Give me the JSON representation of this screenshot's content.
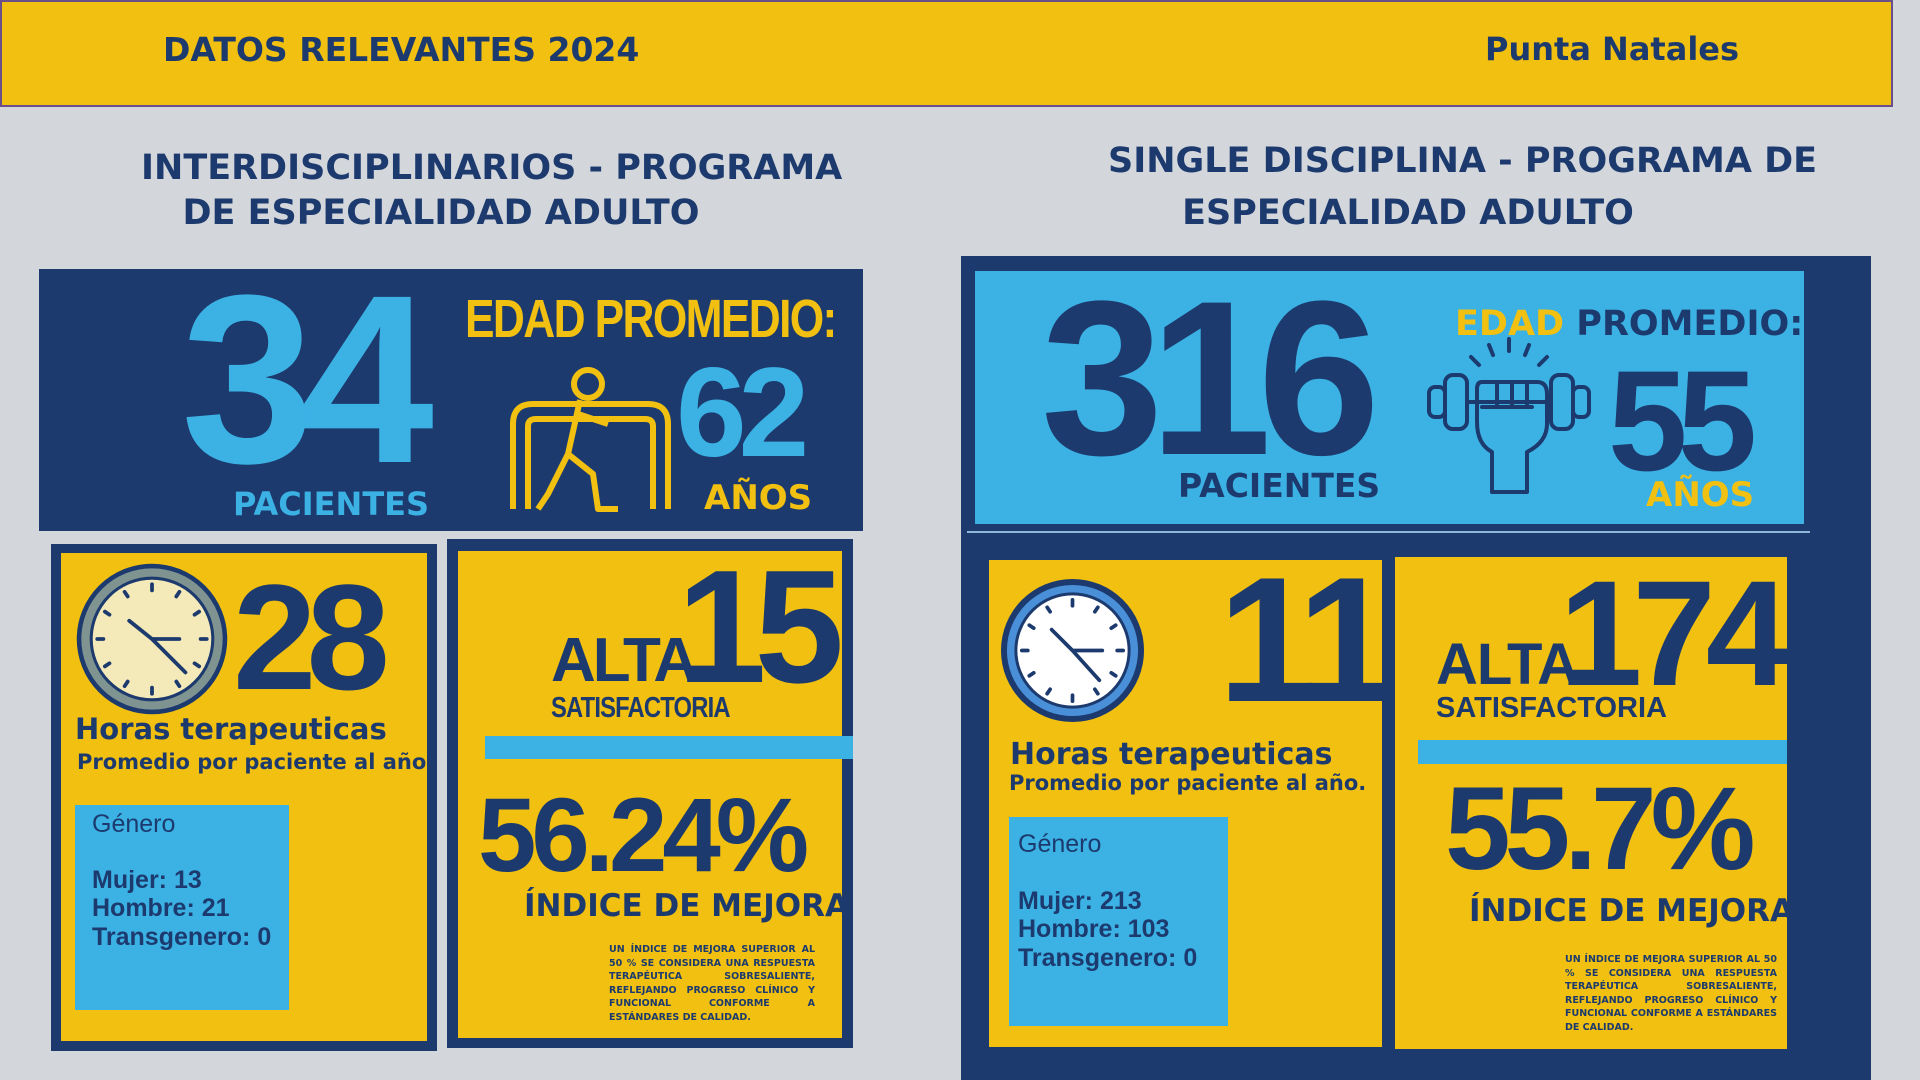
{
  "header": {
    "title": "DATOS RELEVANTES 2024",
    "location": "Punta Natales"
  },
  "panels": [
    {
      "title": [
        "INTERDISCIPLINARIOS - PROGRAMA",
        "DE ESPECIALIDAD ADULTO"
      ],
      "patients": {
        "value": "34",
        "label": "PACIENTES"
      },
      "age": {
        "label": [
          "EDAD",
          "PROMEDIO:"
        ],
        "value": "62",
        "unit": "AÑOS"
      },
      "hours": {
        "value": "28",
        "label": "Horas terapeuticas",
        "sublabel": "Promedio por paciente al año."
      },
      "gender": {
        "title": "Género",
        "items": [
          "Mujer: 13",
          "Hombre: 21",
          "Transgenero: 0"
        ]
      },
      "discharge": {
        "label": "ALTA",
        "value": "15",
        "sublabel": "SATISFACTORIA"
      },
      "improvement": {
        "value": "56.24%",
        "label": "ÍNDICE DE MEJORA",
        "note": "UN ÍNDICE DE MEJORA SUPERIOR AL 50 % SE CONSIDERA UNA RESPUESTA TERAPÉUTICA SOBRESALIENTE, REFLEJANDO PROGRESO CLÍNICO Y FUNCIONAL CONFORME A ESTÁNDARES DE CALIDAD."
      }
    },
    {
      "title": [
        "SINGLE DISCIPLINA - PROGRAMA DE",
        "ESPECIALIDAD ADULTO"
      ],
      "patients": {
        "value": "316",
        "label": "PACIENTES"
      },
      "age": {
        "label": [
          "EDAD",
          "PROMEDIO:"
        ],
        "value": "55",
        "unit": "AÑOS"
      },
      "hours": {
        "value": "11",
        "label": "Horas terapeuticas",
        "sublabel": "Promedio por paciente al año."
      },
      "gender": {
        "title": "Género",
        "items": [
          "Mujer: 213",
          "Hombre: 103",
          "Transgenero: 0"
        ]
      },
      "discharge": {
        "label": "ALTA",
        "value": "174",
        "sublabel": "SATISFACTORIA"
      },
      "improvement": {
        "value": "55.7%",
        "label": "ÍNDICE DE MEJORA",
        "note": "UN ÍNDICE DE MEJORA SUPERIOR AL 50 % SE CONSIDERA UNA RESPUESTA TERAPÉUTICA SOBRESALIENTE, REFLEJANDO PROGRESO CLÍNICO Y FUNCIONAL CONFORME A ESTÁNDARES DE CALIDAD."
      }
    }
  ]
}
